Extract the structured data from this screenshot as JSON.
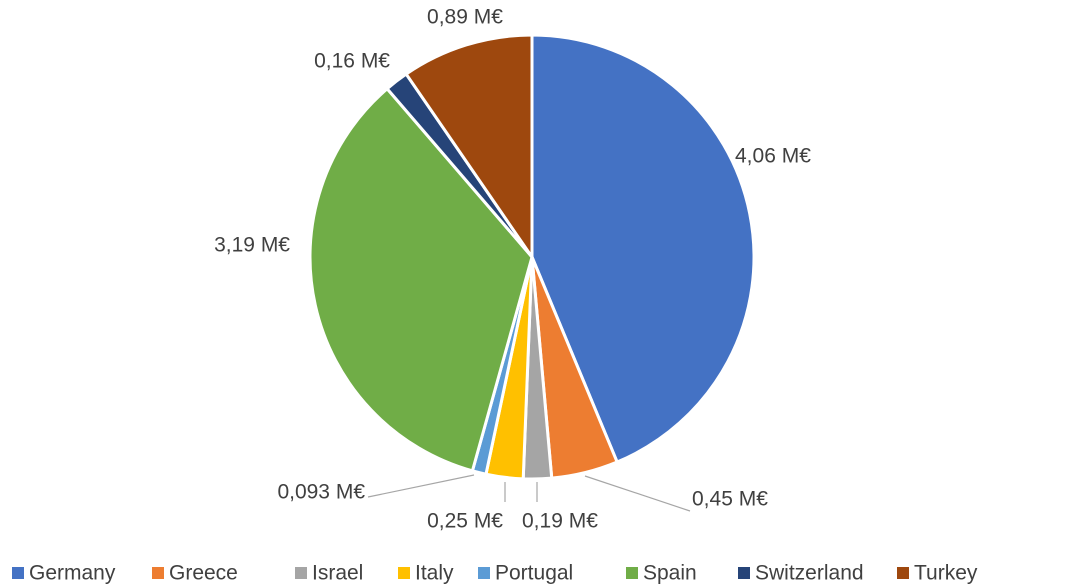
{
  "chart_data": {
    "type": "pie",
    "categories": [
      "Germany",
      "Greece",
      "Israel",
      "Italy",
      "Portugal",
      "Spain",
      "Switzerland",
      "Turkey"
    ],
    "values": [
      4.06,
      0.45,
      0.19,
      0.25,
      0.093,
      3.19,
      0.16,
      0.89
    ],
    "value_labels": [
      "4,06 M€",
      "0,45 M€",
      "0,19 M€",
      "0,25 M€",
      "0,093 M€",
      "3,19 M€",
      "0,16 M€",
      "0,89 M€"
    ],
    "colors": [
      "#4472c4",
      "#ed7d31",
      "#a5a5a5",
      "#ffc000",
      "#5b9bd5",
      "#70ad47",
      "#264478",
      "#9e480e"
    ],
    "legend": "bottom"
  }
}
